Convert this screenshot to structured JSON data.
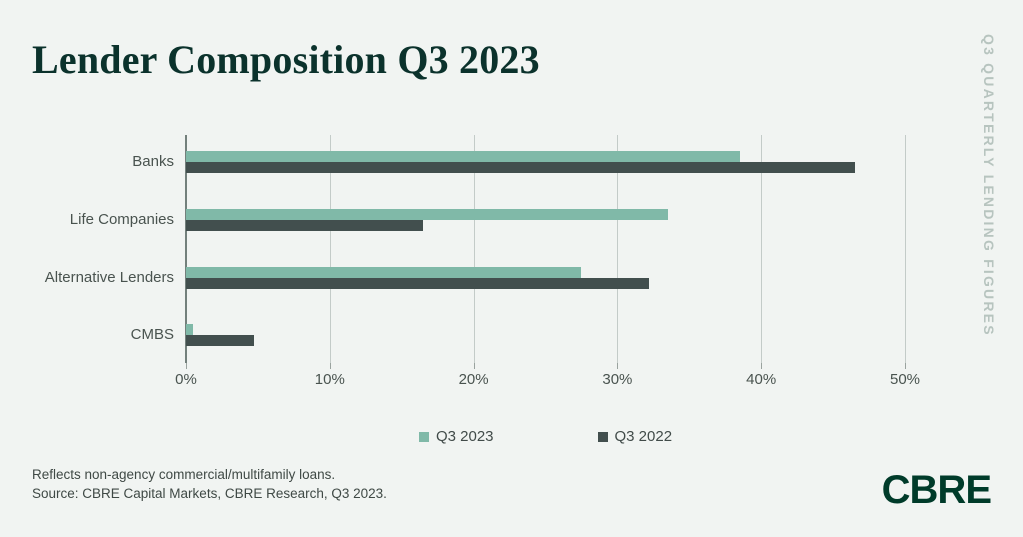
{
  "title": "Lender Composition Q3 2023",
  "side_label": "Q3 QUARTERLY LENDING FIGURES",
  "chart_data": {
    "type": "bar",
    "orientation": "horizontal",
    "title": "Lender Composition Q3 2023",
    "categories": [
      "Banks",
      "Life Companies",
      "Alternative Lenders",
      "CMBS"
    ],
    "series": [
      {
        "name": "Q3 2023",
        "color": "#80b9a8",
        "values": [
          38.5,
          33.5,
          27.5,
          0.5
        ]
      },
      {
        "name": "Q3 2022",
        "color": "#424f4e",
        "values": [
          46.5,
          16.5,
          32.2,
          4.7
        ]
      }
    ],
    "x_tick_labels": [
      "0%",
      "10%",
      "20%",
      "30%",
      "40%",
      "50%"
    ],
    "xlim": [
      0,
      50
    ],
    "unit": "%",
    "grid": true,
    "legend_position": "bottom-center"
  },
  "footer": {
    "line1": "Reflects non-agency commercial/multifamily loans.",
    "line2": "Source: CBRE Capital Markets, CBRE Research, Q3 2023."
  },
  "logo_text": "CBRE",
  "colors": {
    "background": "#f1f4f2",
    "series_2023": "#80b9a8",
    "series_2022": "#424f4e",
    "title": "#0b322c",
    "axis_labels": "#49534f",
    "gridline": "#c3cbc8",
    "zero_line": "#73807c",
    "side_label": "#b7c4bf",
    "footer_text": "#3f4945",
    "logo": "#003b2a"
  }
}
